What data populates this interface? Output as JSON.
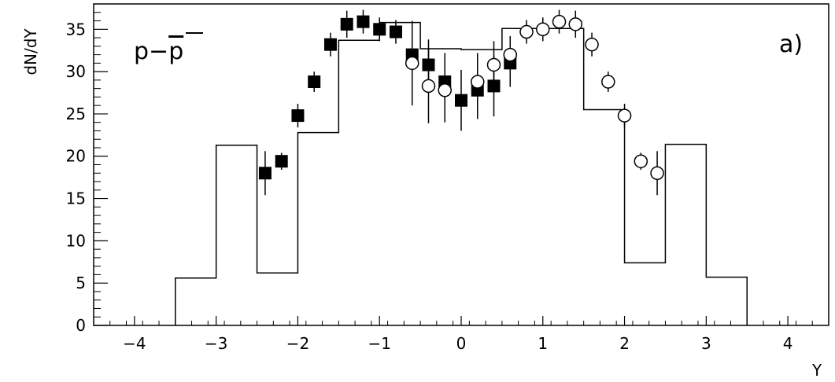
{
  "chart_data": {
    "type": "scatter",
    "panel_label": "a)",
    "reaction_label": {
      "base": "p−",
      "bar": "p"
    },
    "xlabel": "Y",
    "ylabel": "dN/dY",
    "xlim": [
      -4.5,
      4.5
    ],
    "ylim": [
      0,
      38
    ],
    "x_major_ticks": [
      -4,
      -3,
      -2,
      -1,
      0,
      1,
      2,
      3,
      4
    ],
    "x_tick_labels": [
      "−4",
      "−3",
      "−2",
      "−1",
      "0",
      "1",
      "2",
      "3",
      "4"
    ],
    "y_major_ticks": [
      0,
      5,
      10,
      15,
      20,
      25,
      30,
      35
    ],
    "y_tick_labels": [
      "0",
      "5",
      "10",
      "15",
      "20",
      "25",
      "30",
      "35"
    ],
    "grid": false,
    "series": [
      {
        "marker": "filled-square",
        "points": [
          {
            "x": -2.4,
            "y": 18.0,
            "err": 2.6
          },
          {
            "x": -2.2,
            "y": 19.4,
            "err": 1.0
          },
          {
            "x": -2.0,
            "y": 24.8,
            "err": 1.4
          },
          {
            "x": -1.8,
            "y": 28.8,
            "err": 1.2
          },
          {
            "x": -1.6,
            "y": 33.2,
            "err": 1.4
          },
          {
            "x": -1.4,
            "y": 35.6,
            "err": 1.6
          },
          {
            "x": -1.2,
            "y": 35.9,
            "err": 1.4
          },
          {
            "x": -1.0,
            "y": 35.0,
            "err": 1.4
          },
          {
            "x": -0.8,
            "y": 34.7,
            "err": 1.4
          },
          {
            "x": -0.6,
            "y": 32.0,
            "err": 2.2
          },
          {
            "x": -0.4,
            "y": 30.8,
            "err": 3.0
          },
          {
            "x": -0.2,
            "y": 28.8,
            "err": 3.4
          },
          {
            "x": 0.0,
            "y": 26.6,
            "err": 3.6
          },
          {
            "x": 0.2,
            "y": 27.8,
            "err": 3.4
          },
          {
            "x": 0.4,
            "y": 28.3,
            "err": 3.6
          },
          {
            "x": 0.6,
            "y": 31.0,
            "err": 2.8
          }
        ]
      },
      {
        "marker": "open-circle",
        "points": [
          {
            "x": -0.6,
            "y": 31.0,
            "err": 5.0
          },
          {
            "x": -0.4,
            "y": 28.3,
            "err": 4.4
          },
          {
            "x": -0.2,
            "y": 27.8,
            "err": 3.8
          },
          {
            "x": 0.2,
            "y": 28.8,
            "err": 3.4
          },
          {
            "x": 0.4,
            "y": 30.8,
            "err": 2.8
          },
          {
            "x": 0.6,
            "y": 32.0,
            "err": 2.2
          },
          {
            "x": 0.8,
            "y": 34.7,
            "err": 1.4
          },
          {
            "x": 1.0,
            "y": 35.0,
            "err": 1.4
          },
          {
            "x": 1.2,
            "y": 35.9,
            "err": 1.4
          },
          {
            "x": 1.4,
            "y": 35.6,
            "err": 1.6
          },
          {
            "x": 1.6,
            "y": 33.2,
            "err": 1.4
          },
          {
            "x": 1.8,
            "y": 28.8,
            "err": 1.2
          },
          {
            "x": 2.0,
            "y": 24.8,
            "err": 1.4
          },
          {
            "x": 2.2,
            "y": 19.4,
            "err": 1.0
          },
          {
            "x": 2.4,
            "y": 18.0,
            "err": 2.6
          }
        ]
      }
    ],
    "histogram": {
      "type": "step",
      "bins": [
        {
          "x0": -3.5,
          "x1": -3.0,
          "y": 5.6
        },
        {
          "x0": -3.0,
          "x1": -2.5,
          "y": 21.3
        },
        {
          "x0": -2.5,
          "x1": -2.0,
          "y": 6.2
        },
        {
          "x0": -2.0,
          "x1": -1.5,
          "y": 22.8
        },
        {
          "x0": -1.5,
          "x1": -1.0,
          "y": 33.7
        },
        {
          "x0": -1.0,
          "x1": -0.5,
          "y": 35.8
        },
        {
          "x0": -0.5,
          "x1": 0.0,
          "y": 32.7
        },
        {
          "x0": 0.0,
          "x1": 0.5,
          "y": 32.6
        },
        {
          "x0": 0.5,
          "x1": 1.0,
          "y": 35.1
        },
        {
          "x0": 1.0,
          "x1": 1.5,
          "y": 35.1
        },
        {
          "x0": 1.5,
          "x1": 2.0,
          "y": 25.5
        },
        {
          "x0": 2.0,
          "x1": 2.5,
          "y": 7.4
        },
        {
          "x0": 2.5,
          "x1": 3.0,
          "y": 21.4
        },
        {
          "x0": 3.0,
          "x1": 3.5,
          "y": 5.7
        }
      ]
    }
  }
}
